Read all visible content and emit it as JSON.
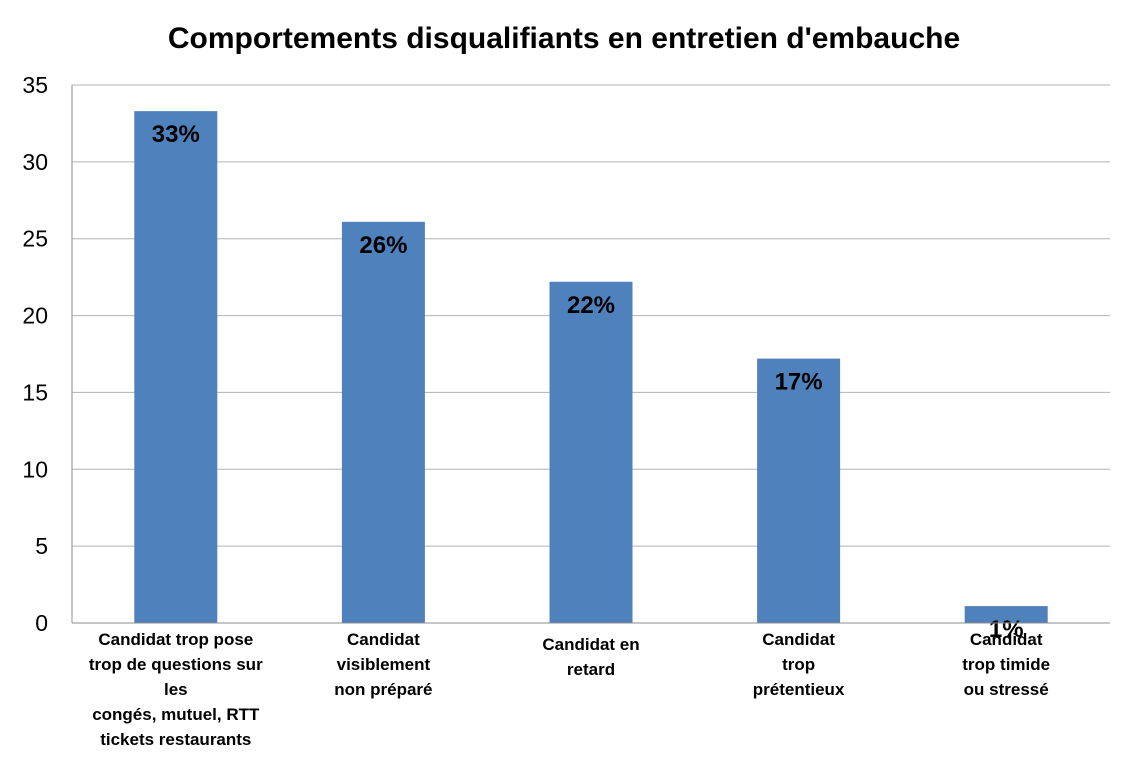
{
  "chart_data": {
    "type": "bar",
    "title": "Comportements disqualifiants en entretien d'embauche",
    "categories": [
      [
        "Candidat trop pose",
        "trop de questions sur",
        "les",
        "congés, mutuel, RTT",
        "tickets restaurants"
      ],
      [
        "Candidat",
        "visiblement",
        "non préparé"
      ],
      [
        "Candidat en",
        "retard"
      ],
      [
        "Candidat",
        "trop",
        "prétentieux"
      ],
      [
        "Candidat",
        "trop timide",
        "ou stressé"
      ]
    ],
    "values": [
      33.3,
      26.1,
      22.2,
      17.2,
      1.1
    ],
    "data_labels": [
      "33%",
      "26%",
      "22%",
      "17%",
      "1%"
    ],
    "xlabel": "",
    "ylabel": "",
    "ylim": [
      0,
      35
    ],
    "yticks": [
      "0",
      "5",
      "10",
      "15",
      "20",
      "25",
      "30",
      "35"
    ],
    "grid": true,
    "legend": "none",
    "bar_color": "#4f81bd"
  }
}
